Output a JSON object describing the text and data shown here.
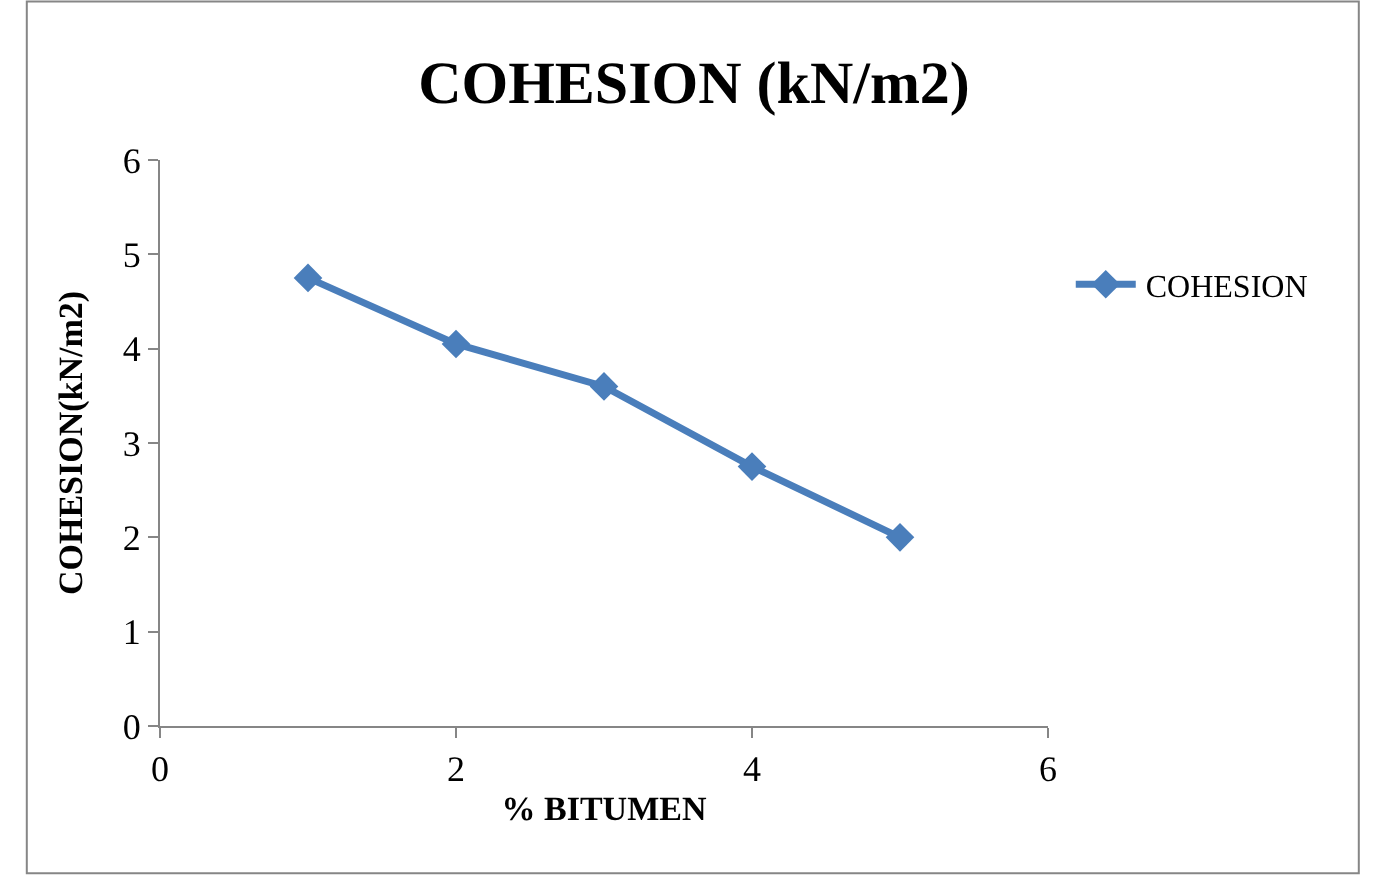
{
  "chart_data": {
    "type": "line",
    "title": "COHESION (kN/m2)",
    "xlabel": "% BITUMEN",
    "ylabel": "COHESION(kN/m2)",
    "x": [
      1,
      2,
      3,
      4,
      5
    ],
    "series": [
      {
        "name": "COHESION",
        "color": "#4a7ebb",
        "values": [
          4.75,
          4.05,
          3.6,
          2.75,
          2.0
        ]
      }
    ],
    "xlim": [
      0,
      6
    ],
    "xticks": [
      0,
      2,
      4,
      6
    ],
    "ylim": [
      0,
      6
    ],
    "yticks": [
      0,
      1,
      2,
      3,
      4,
      5,
      6
    ],
    "marker": "diamond",
    "line_style": "solid",
    "legend": "right"
  }
}
